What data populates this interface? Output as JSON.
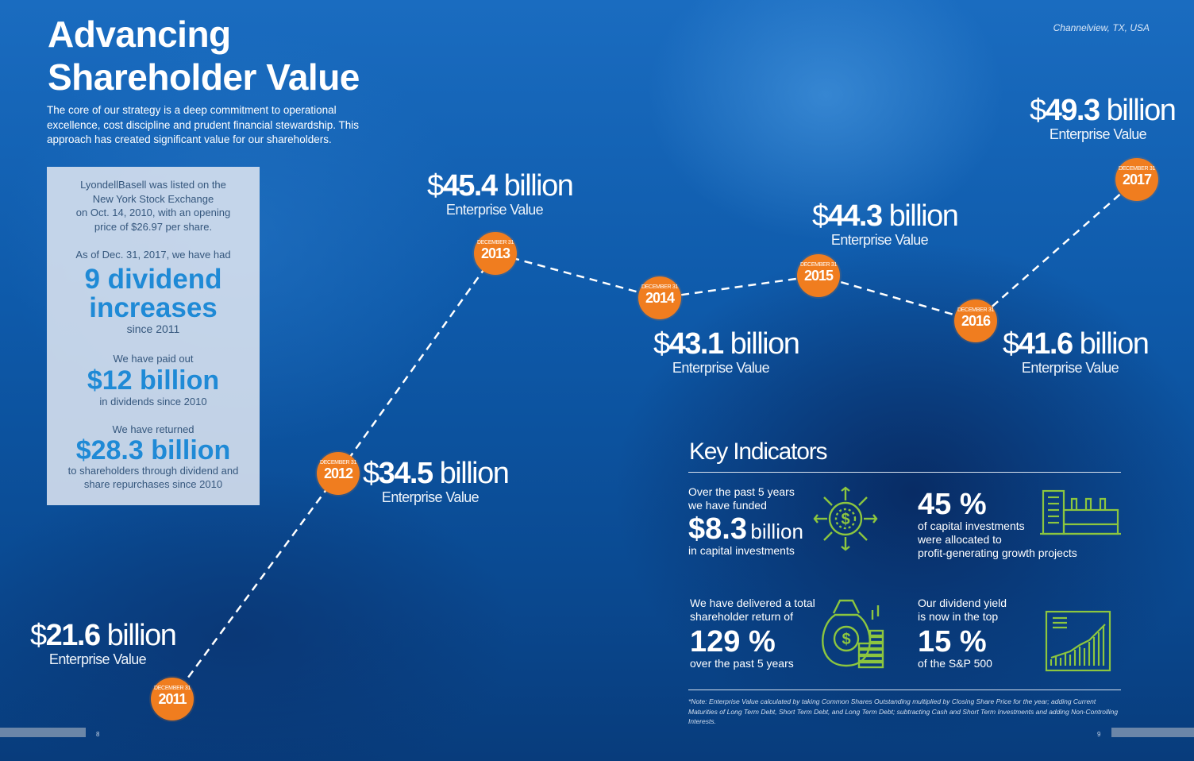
{
  "title_line1": "Advancing",
  "title_line2": "Shareholder Value",
  "intro": "The core of our strategy is a deep commitment to operational excellence, cost discipline and prudent financial stewardship. This approach has created significant value for our shareholders.",
  "location": "Channelview, TX, USA",
  "left_box": {
    "listing_l1": "LyondellBasell was listed on the",
    "listing_l2": "New York Stock Exchange",
    "listing_l3": "on Oct. 14, 2010, with an opening",
    "listing_l4": "price of $26.97 per share.",
    "asof": "As of Dec. 31, 2017, we have had",
    "div_big_l1": "9 dividend",
    "div_big_l2": "increases",
    "div_since": "since 2011",
    "paid_intro": "We have paid out",
    "paid_big": "$12 billion",
    "paid_since": "in dividends since 2010",
    "ret_intro": "We have returned",
    "ret_big": "$28.3 billion",
    "ret_l1": "to shareholders through dividend and",
    "ret_l2": "share repurchases since 2010"
  },
  "timeline": {
    "month_label": "DECEMBER 31",
    "ev_label": "Enterprise Value",
    "unit": "billion",
    "points": [
      {
        "year": "2011",
        "value": "21.6"
      },
      {
        "year": "2012",
        "value": "34.5"
      },
      {
        "year": "2013",
        "value": "45.4"
      },
      {
        "year": "2014",
        "value": "43.1"
      },
      {
        "year": "2015",
        "value": "44.3"
      },
      {
        "year": "2016",
        "value": "41.6"
      },
      {
        "year": "2017",
        "value": "49.3"
      }
    ]
  },
  "key_indicators": {
    "title": "Key Indicators",
    "k1_l1": "Over the past 5 years",
    "k1_l2": "we have funded",
    "k1_big": "$8.3",
    "k1_unit": "billion",
    "k1_l3": "in capital investments",
    "k2_big": "45 %",
    "k2_l1": "of capital investments",
    "k2_l2": "were allocated to",
    "k2_l3": "profit-generating growth projects",
    "k3_l1": "We have delivered a total",
    "k3_l2": "shareholder return of",
    "k3_big": "129 %",
    "k3_l3": "over the past 5 years",
    "k4_l1": "Our dividend yield",
    "k4_l2": "is now in the top",
    "k4_big": "15 %",
    "k4_l3": "of the S&P 500"
  },
  "note": "*Note: Enterprise Value calculated by taking Common Shares Outstanding multiplied by Closing Share Price for the year; adding Current Maturities of Long Term Debt, Short Term Debt, and Long Term Debt; subtracting Cash and Short Term Investments and adding Non-Controlling Interests.",
  "page_left": "8",
  "page_right": "9",
  "colors": {
    "accent_orange": "#f07d1f",
    "icon_green": "#8cc63f",
    "box_blue": "#1f8ad6"
  },
  "icons": [
    "dollar-target-icon",
    "factory-icon",
    "money-bag-coins-icon",
    "growth-chart-icon"
  ]
}
